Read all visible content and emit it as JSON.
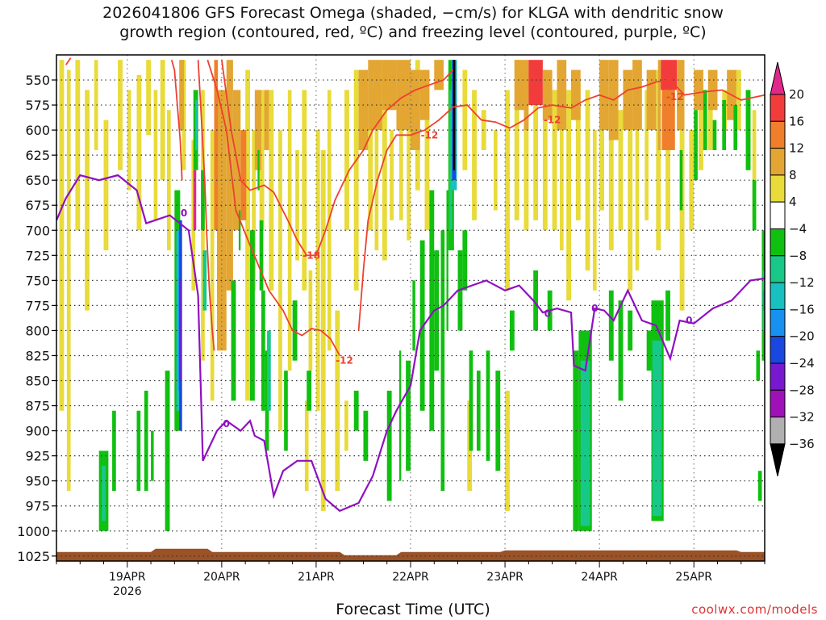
{
  "title": {
    "line1": "2026041806 GFS Forecast Omega (shaded, −cm/s) for KLGA with dendritic snow",
    "line2": "growth region (contoured, red, ºC) and freezing level (contoured, purple, ºC)"
  },
  "xlabel": "Forecast Time (UTC)",
  "credit": "coolwx.com/models",
  "chart_data": {
    "type": "heatmap",
    "title": "2026041806 GFS Forecast Omega (shaded, −cm/s) for KLGA",
    "xlabel": "Forecast Time (UTC)",
    "ylabel": "Pressure (hPa)",
    "xlim_days": [
      18.25,
      25.75
    ],
    "ylim_hpa": [
      1030,
      525
    ],
    "y_ticks": [
      550,
      575,
      600,
      625,
      650,
      675,
      700,
      725,
      750,
      775,
      800,
      825,
      850,
      875,
      900,
      925,
      950,
      975,
      1000,
      1025
    ],
    "x_ticks": [
      {
        "day": 19,
        "label": "19APR",
        "sub": "2026"
      },
      {
        "day": 20,
        "label": "20APR",
        "sub": ""
      },
      {
        "day": 21,
        "label": "21APR",
        "sub": ""
      },
      {
        "day": 22,
        "label": "22APR",
        "sub": ""
      },
      {
        "day": 23,
        "label": "23APR",
        "sub": ""
      },
      {
        "day": 24,
        "label": "24APR",
        "sub": ""
      },
      {
        "day": 25,
        "label": "25APR",
        "sub": ""
      }
    ],
    "colorbar": {
      "levels": [
        -36,
        -32,
        -28,
        -24,
        -20,
        -16,
        -12,
        -8,
        -4,
        4,
        8,
        12,
        16,
        20
      ],
      "labels": [
        "20",
        "16",
        "12",
        "8",
        "4",
        "−4",
        "−8",
        "−12",
        "−16",
        "−20",
        "−24",
        "−28",
        "−32",
        "−36"
      ],
      "colors_top_to_bottom": [
        "#e0288a",
        "#f23c3c",
        "#ef7f2a",
        "#e3a632",
        "#e8db3a",
        "#ffffff",
        "#10c010",
        "#18c888",
        "#18c0c0",
        "#1890f0",
        "#1848e0",
        "#7818d0",
        "#a010b8",
        "#b0b0b0",
        "#000000"
      ]
    },
    "omega_regions": [
      {
        "label": "yellow column",
        "value": 4,
        "t0": 18.3,
        "t1": 18.6,
        "p_top": 530,
        "p_bot": 890,
        "color": "#e8db3a"
      },
      {
        "label": "orange column",
        "value": 8,
        "t0": 19.95,
        "t1": 20.3,
        "p_top": 560,
        "p_bot": 820,
        "color": "#e3a632"
      },
      {
        "label": "upper orange band",
        "value": 12,
        "t0": 21.5,
        "t1": 22.1,
        "p_top": 530,
        "p_bot": 610,
        "color": "#e3a632"
      },
      {
        "label": "upper red band",
        "value": 16,
        "t0": 23.25,
        "t1": 23.4,
        "p_top": 530,
        "p_bot": 570,
        "color": "#f23c3c"
      },
      {
        "label": "upper red band 2",
        "value": 16,
        "t0": 24.65,
        "t1": 24.8,
        "p_top": 530,
        "p_bot": 560,
        "color": "#f23c3c"
      },
      {
        "label": "green blob",
        "value": -8,
        "t0": 18.7,
        "t1": 18.8,
        "p_top": 920,
        "p_bot": 1000,
        "color": "#10c010"
      },
      {
        "label": "teal column 24APR",
        "value": -12,
        "t0": 23.75,
        "t1": 23.9,
        "p_top": 820,
        "p_bot": 1000,
        "color": "#18c888"
      },
      {
        "label": "teal column 25APR",
        "value": -12,
        "t0": 24.55,
        "t1": 24.65,
        "p_top": 820,
        "p_bot": 990,
        "color": "#18c888"
      },
      {
        "label": "black core",
        "value": -36,
        "t0": 22.42,
        "t1": 22.48,
        "p_top": 530,
        "p_bot": 640,
        "color": "#000000"
      }
    ],
    "dgz_contour_labels": [
      {
        "text": "-18",
        "day": 20.95,
        "p": 725
      },
      {
        "text": "-12",
        "day": 21.3,
        "p": 830
      },
      {
        "text": "-12",
        "day": 22.2,
        "p": 605
      },
      {
        "text": "-12",
        "day": 23.5,
        "p": 590
      },
      {
        "text": "-12",
        "day": 24.8,
        "p": 567
      }
    ],
    "freezing_contour_labels": [
      {
        "text": "0",
        "day": 19.6,
        "p": 683
      },
      {
        "text": "0",
        "day": 20.05,
        "p": 893
      },
      {
        "text": "0",
        "day": 23.45,
        "p": 783
      },
      {
        "text": "0",
        "day": 23.95,
        "p": 778
      },
      {
        "text": "0",
        "day": 24.95,
        "p": 790
      }
    ],
    "freezing_level_hpa": [
      [
        18.25,
        690
      ],
      [
        18.35,
        668
      ],
      [
        18.5,
        645
      ],
      [
        18.7,
        650
      ],
      [
        18.9,
        645
      ],
      [
        19.1,
        660
      ],
      [
        19.2,
        693
      ],
      [
        19.45,
        685
      ],
      [
        19.65,
        700
      ],
      [
        19.75,
        765
      ],
      [
        19.8,
        930
      ],
      [
        19.85,
        920
      ],
      [
        19.95,
        900
      ],
      [
        20.05,
        890
      ],
      [
        20.2,
        900
      ],
      [
        20.3,
        890
      ],
      [
        20.35,
        905
      ],
      [
        20.45,
        910
      ],
      [
        20.55,
        965
      ],
      [
        20.65,
        940
      ],
      [
        20.8,
        930
      ],
      [
        20.95,
        930
      ],
      [
        21.1,
        968
      ],
      [
        21.25,
        980
      ],
      [
        21.45,
        972
      ],
      [
        21.6,
        945
      ],
      [
        21.75,
        900
      ],
      [
        21.85,
        880
      ],
      [
        22.0,
        855
      ],
      [
        22.1,
        800
      ],
      [
        22.25,
        780
      ],
      [
        22.35,
        775
      ],
      [
        22.5,
        760
      ],
      [
        22.65,
        755
      ],
      [
        22.8,
        750
      ],
      [
        23.0,
        760
      ],
      [
        23.15,
        755
      ],
      [
        23.3,
        770
      ],
      [
        23.4,
        782
      ],
      [
        23.55,
        778
      ],
      [
        23.7,
        782
      ],
      [
        23.73,
        835
      ],
      [
        23.85,
        840
      ],
      [
        23.95,
        778
      ],
      [
        24.05,
        780
      ],
      [
        24.15,
        790
      ],
      [
        24.3,
        760
      ],
      [
        24.45,
        790
      ],
      [
        24.6,
        795
      ],
      [
        24.75,
        828
      ],
      [
        24.85,
        790
      ],
      [
        25.0,
        793
      ],
      [
        25.2,
        778
      ],
      [
        25.4,
        770
      ],
      [
        25.6,
        750
      ],
      [
        25.75,
        748
      ]
    ],
    "dgz_minus12_hpa": [
      [
        19.85,
        530
      ],
      [
        19.95,
        560
      ],
      [
        20.05,
        600
      ],
      [
        20.15,
        680
      ],
      [
        20.3,
        715
      ],
      [
        20.5,
        760
      ],
      [
        20.65,
        780
      ],
      [
        20.75,
        800
      ],
      [
        20.85,
        805
      ],
      [
        20.95,
        798
      ],
      [
        21.05,
        800
      ],
      [
        21.15,
        808
      ],
      [
        21.25,
        825
      ]
    ],
    "dgz_minus12_b_hpa": [
      [
        21.45,
        800
      ],
      [
        21.5,
        740
      ],
      [
        21.55,
        690
      ],
      [
        21.65,
        650
      ],
      [
        21.75,
        620
      ],
      [
        21.85,
        605
      ],
      [
        22.0,
        605
      ],
      [
        22.15,
        600
      ],
      [
        22.3,
        590
      ],
      [
        22.45,
        577
      ],
      [
        22.6,
        575
      ],
      [
        22.75,
        590
      ],
      [
        22.9,
        592
      ],
      [
        23.05,
        598
      ],
      [
        23.2,
        590
      ],
      [
        23.35,
        578
      ],
      [
        23.5,
        575
      ],
      [
        23.7,
        578
      ],
      [
        23.85,
        570
      ],
      [
        24.0,
        565
      ],
      [
        24.15,
        570
      ],
      [
        24.3,
        560
      ],
      [
        24.45,
        557
      ],
      [
        24.6,
        552
      ],
      [
        24.75,
        550
      ],
      [
        24.9,
        565
      ],
      [
        25.1,
        562
      ],
      [
        25.3,
        560
      ],
      [
        25.5,
        570
      ],
      [
        25.75,
        565
      ]
    ],
    "dgz_minus18_hpa": [
      [
        20.0,
        530
      ],
      [
        20.1,
        600
      ],
      [
        20.2,
        650
      ],
      [
        20.3,
        660
      ],
      [
        20.45,
        655
      ],
      [
        20.55,
        662
      ],
      [
        20.7,
        690
      ],
      [
        20.8,
        710
      ],
      [
        20.9,
        725
      ],
      [
        21.0,
        725
      ],
      [
        21.1,
        700
      ],
      [
        21.2,
        670
      ],
      [
        21.35,
        640
      ],
      [
        21.5,
        620
      ],
      [
        21.6,
        600
      ],
      [
        21.75,
        580
      ],
      [
        21.9,
        568
      ],
      [
        22.05,
        560
      ],
      [
        22.2,
        555
      ],
      [
        22.35,
        550
      ],
      [
        22.45,
        540
      ]
    ]
  }
}
